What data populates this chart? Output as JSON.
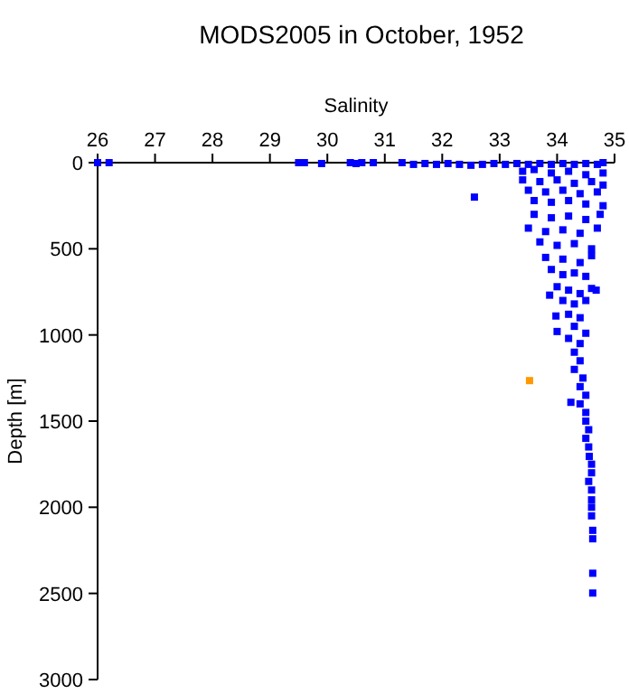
{
  "chart_data": {
    "type": "scatter",
    "title": "MODS2005 in October, 1952",
    "xlabel": "Salinity",
    "ylabel": "Depth [m]",
    "xlim": [
      26,
      35
    ],
    "xticks": [
      26,
      27,
      28,
      29,
      30,
      31,
      32,
      33,
      34,
      35
    ],
    "ylim": [
      3000,
      0
    ],
    "yticks": [
      0,
      500,
      1000,
      1500,
      2000,
      2500,
      3000
    ],
    "marker": "square",
    "series": [
      {
        "color": "#0000ff",
        "x": [
          26.0,
          26.2,
          29.5,
          29.6,
          29.9,
          30.4,
          30.5,
          30.6,
          30.8,
          31.3,
          31.5,
          31.7,
          31.9,
          32.1,
          32.3,
          32.5,
          32.7,
          32.9,
          33.1,
          33.3,
          33.5,
          33.7,
          33.9,
          34.1,
          34.3,
          34.5,
          34.7,
          34.8,
          33.4,
          33.6,
          33.9,
          34.2,
          34.5,
          34.8,
          33.4,
          33.7,
          34.0,
          34.3,
          34.6,
          34.8,
          33.5,
          33.8,
          34.1,
          34.4,
          34.7,
          33.6,
          33.9,
          34.2,
          34.5,
          34.8,
          32.56,
          33.6,
          33.9,
          34.2,
          34.5,
          34.75,
          33.5,
          33.8,
          34.1,
          34.4,
          34.7,
          33.7,
          34.0,
          34.3,
          34.6,
          33.8,
          34.1,
          34.4,
          34.6,
          33.9,
          34.1,
          34.3,
          34.5,
          34.0,
          34.2,
          34.4,
          34.6,
          33.87,
          34.68,
          34.1,
          34.3,
          34.5,
          34.2,
          34.4,
          33.98,
          34.0,
          34.3,
          34.5,
          34.2,
          34.4,
          34.3,
          34.4,
          34.3,
          34.45,
          34.4,
          34.5,
          34.4,
          34.5,
          34.24,
          34.5,
          34.55,
          34.5,
          34.56,
          34.6,
          34.55,
          34.6,
          34.55,
          34.6,
          34.6,
          34.6,
          34.6,
          34.62,
          34.62,
          34.62,
          34.62
        ],
        "values": [
          0,
          0,
          0,
          0,
          5,
          0,
          5,
          0,
          0,
          0,
          10,
          5,
          10,
          5,
          10,
          15,
          10,
          5,
          10,
          5,
          10,
          5,
          10,
          5,
          10,
          5,
          10,
          0,
          50,
          40,
          60,
          50,
          70,
          60,
          100,
          110,
          100,
          120,
          110,
          130,
          160,
          170,
          160,
          180,
          170,
          220,
          230,
          220,
          240,
          250,
          200,
          300,
          320,
          310,
          330,
          300,
          380,
          400,
          390,
          410,
          380,
          460,
          480,
          470,
          500,
          550,
          560,
          580,
          540,
          620,
          650,
          640,
          660,
          720,
          740,
          760,
          730,
          769,
          740,
          800,
          820,
          800,
          880,
          900,
          890,
          980,
          950,
          990,
          1020,
          1050,
          1100,
          1150,
          1200,
          1250,
          1300,
          1350,
          1400,
          1450,
          1391,
          1500,
          1550,
          1600,
          1705,
          1750,
          1650,
          1800,
          1850,
          1900,
          1957,
          2000,
          2050,
          2134,
          2183,
          2383,
          2498
        ]
      },
      {
        "color": "#ff9900",
        "x": [
          33.52
        ],
        "values": [
          1265
        ]
      }
    ]
  }
}
